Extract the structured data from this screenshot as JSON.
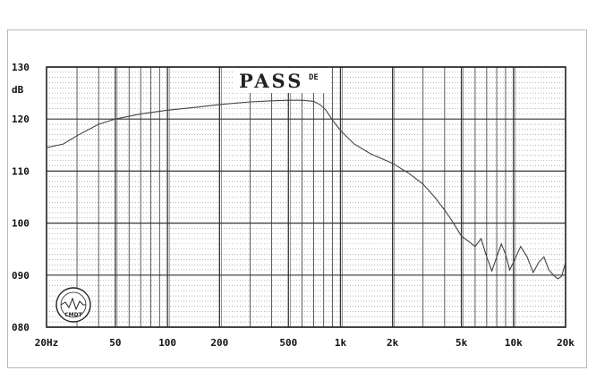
{
  "chart_data": {
    "type": "line",
    "title": "",
    "xlabel": "",
    "ylabel": "dB",
    "x_scale": "log",
    "xlim": [
      20,
      20000
    ],
    "ylim": [
      80,
      130
    ],
    "grid": true,
    "y_ticks": [
      {
        "value": 130,
        "label": "130"
      },
      {
        "value": 120,
        "label": "120"
      },
      {
        "value": 110,
        "label": "110"
      },
      {
        "value": 100,
        "label": "100"
      },
      {
        "value": 90,
        "label": "090"
      },
      {
        "value": 80,
        "label": "080"
      }
    ],
    "x_ticks": [
      {
        "value": 20,
        "label": "20Hz"
      },
      {
        "value": 50,
        "label": "50"
      },
      {
        "value": 100,
        "label": "100"
      },
      {
        "value": 200,
        "label": "200"
      },
      {
        "value": 500,
        "label": "500"
      },
      {
        "value": 1000,
        "label": "1k"
      },
      {
        "value": 2000,
        "label": "2k"
      },
      {
        "value": 5000,
        "label": "5k"
      },
      {
        "value": 10000,
        "label": "10k"
      },
      {
        "value": 20000,
        "label": "20k"
      }
    ],
    "series": [
      {
        "color": "#444444",
        "points": [
          [
            20,
            114.5
          ],
          [
            25,
            115.2
          ],
          [
            30,
            116.8
          ],
          [
            40,
            119
          ],
          [
            50,
            120
          ],
          [
            70,
            121
          ],
          [
            100,
            121.7
          ],
          [
            150,
            122.3
          ],
          [
            200,
            122.8
          ],
          [
            300,
            123.3
          ],
          [
            400,
            123.5
          ],
          [
            500,
            123.6
          ],
          [
            600,
            123.6
          ],
          [
            700,
            123.4
          ],
          [
            760,
            122.8
          ],
          [
            820,
            121.8
          ],
          [
            900,
            119.8
          ],
          [
            1000,
            117.8
          ],
          [
            1200,
            115.2
          ],
          [
            1500,
            113.3
          ],
          [
            2000,
            111.5
          ],
          [
            2500,
            109.5
          ],
          [
            3000,
            107.5
          ],
          [
            3500,
            105
          ],
          [
            4000,
            102.5
          ],
          [
            4500,
            100
          ],
          [
            5000,
            97.5
          ],
          [
            5500,
            96.5
          ],
          [
            6000,
            95.5
          ],
          [
            6500,
            97
          ],
          [
            7000,
            93.5
          ],
          [
            7500,
            90.8
          ],
          [
            8000,
            93.5
          ],
          [
            8500,
            96
          ],
          [
            9000,
            94
          ],
          [
            9500,
            91
          ],
          [
            10000,
            92.5
          ],
          [
            11000,
            95.5
          ],
          [
            12000,
            93.5
          ],
          [
            13000,
            90.5
          ],
          [
            14000,
            92.5
          ],
          [
            15000,
            93.5
          ],
          [
            16000,
            91
          ],
          [
            17000,
            90
          ],
          [
            18000,
            89.3
          ],
          [
            19000,
            89.8
          ],
          [
            20000,
            92.5
          ]
        ]
      }
    ]
  },
  "overlay": {
    "pass_text": "PASS",
    "pass_superscript": "DE",
    "stamp_text": "CMDT"
  }
}
